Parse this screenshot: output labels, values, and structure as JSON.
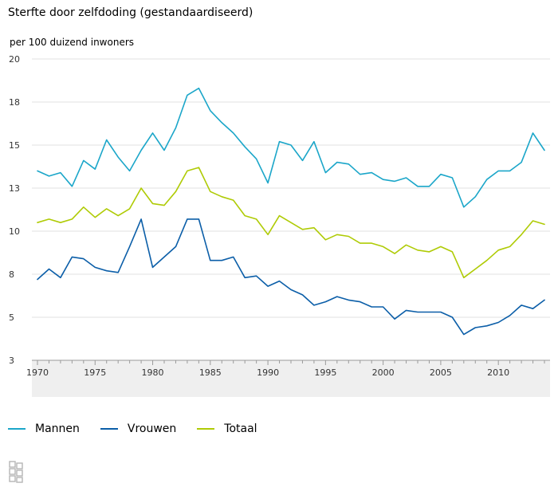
{
  "title": "Sterfte door zelfdoding (gestandaardiseerd)",
  "subtitle": "per 100 duizend inwoners",
  "colors": {
    "mannen": "#1ba6c9",
    "vrouwen": "#0b5ea8",
    "totaal": "#afcb05",
    "grid": "#e1e1e1",
    "axis_band": "#efefef"
  },
  "legend": {
    "mannen": "Mannen",
    "vrouwen": "Vrouwen",
    "totaal": "Totaal"
  },
  "chart_data": {
    "type": "line",
    "title": "Sterfte door zelfdoding (gestandaardiseerd)",
    "subtitle": "per 100 duizend inwoners",
    "xlabel": "",
    "ylabel": "",
    "xlim": [
      1970,
      2014
    ],
    "ylim": [
      2.5,
      20
    ],
    "y_ticks": [
      {
        "value": 20,
        "label": "20"
      },
      {
        "value": 17.5,
        "label": "18"
      },
      {
        "value": 15,
        "label": "15"
      },
      {
        "value": 12.5,
        "label": "13"
      },
      {
        "value": 10,
        "label": "10"
      },
      {
        "value": 7.5,
        "label": "8"
      },
      {
        "value": 5,
        "label": "5"
      },
      {
        "value": 2.5,
        "label": "3"
      }
    ],
    "x_ticks": [
      1970,
      1975,
      1980,
      1985,
      1990,
      1995,
      2000,
      2005,
      2010
    ],
    "grid": "horizontal",
    "legend_position": "bottom-left",
    "x": [
      1970,
      1971,
      1972,
      1973,
      1974,
      1975,
      1976,
      1977,
      1978,
      1979,
      1980,
      1981,
      1982,
      1983,
      1984,
      1985,
      1986,
      1987,
      1988,
      1989,
      1990,
      1991,
      1992,
      1993,
      1994,
      1995,
      1996,
      1997,
      1998,
      1999,
      2000,
      2001,
      2002,
      2003,
      2004,
      2005,
      2006,
      2007,
      2008,
      2009,
      2010,
      2011,
      2012,
      2013,
      2014
    ],
    "series": [
      {
        "name": "Mannen",
        "color": "#1ba6c9",
        "values": [
          13.5,
          13.2,
          13.4,
          12.6,
          14.1,
          13.6,
          15.3,
          14.3,
          13.5,
          14.7,
          15.7,
          14.7,
          16.0,
          17.9,
          18.3,
          17.0,
          16.3,
          15.7,
          14.9,
          14.2,
          12.8,
          15.2,
          15.0,
          14.1,
          15.2,
          13.4,
          14.0,
          13.9,
          13.3,
          13.4,
          13.0,
          12.9,
          13.1,
          12.6,
          12.6,
          13.3,
          13.1,
          11.4,
          12.0,
          13.0,
          13.5,
          13.5,
          14.0,
          15.7,
          14.7
        ]
      },
      {
        "name": "Vrouwen",
        "color": "#0b5ea8",
        "values": [
          7.2,
          7.8,
          7.3,
          8.5,
          8.4,
          7.9,
          7.7,
          7.6,
          9.1,
          10.7,
          7.9,
          8.5,
          9.1,
          10.7,
          10.7,
          8.3,
          8.3,
          8.5,
          7.3,
          7.4,
          6.8,
          7.1,
          6.6,
          6.3,
          5.7,
          5.9,
          6.2,
          6.0,
          5.9,
          5.6,
          5.6,
          4.9,
          5.4,
          5.3,
          5.3,
          5.3,
          5.0,
          4.0,
          4.4,
          4.5,
          4.7,
          5.1,
          5.7,
          5.5,
          6.0
        ]
      },
      {
        "name": "Totaal",
        "color": "#afcb05",
        "values": [
          10.5,
          10.7,
          10.5,
          10.7,
          11.4,
          10.8,
          11.3,
          10.9,
          11.3,
          12.5,
          11.6,
          11.5,
          12.3,
          13.5,
          13.7,
          12.3,
          12.0,
          11.8,
          10.9,
          10.7,
          9.8,
          10.9,
          10.5,
          10.1,
          10.2,
          9.5,
          9.8,
          9.7,
          9.3,
          9.3,
          9.1,
          8.7,
          9.2,
          8.9,
          8.8,
          9.1,
          8.8,
          7.3,
          7.8,
          8.3,
          8.9,
          9.1,
          9.8,
          10.6,
          10.4
        ]
      }
    ]
  }
}
